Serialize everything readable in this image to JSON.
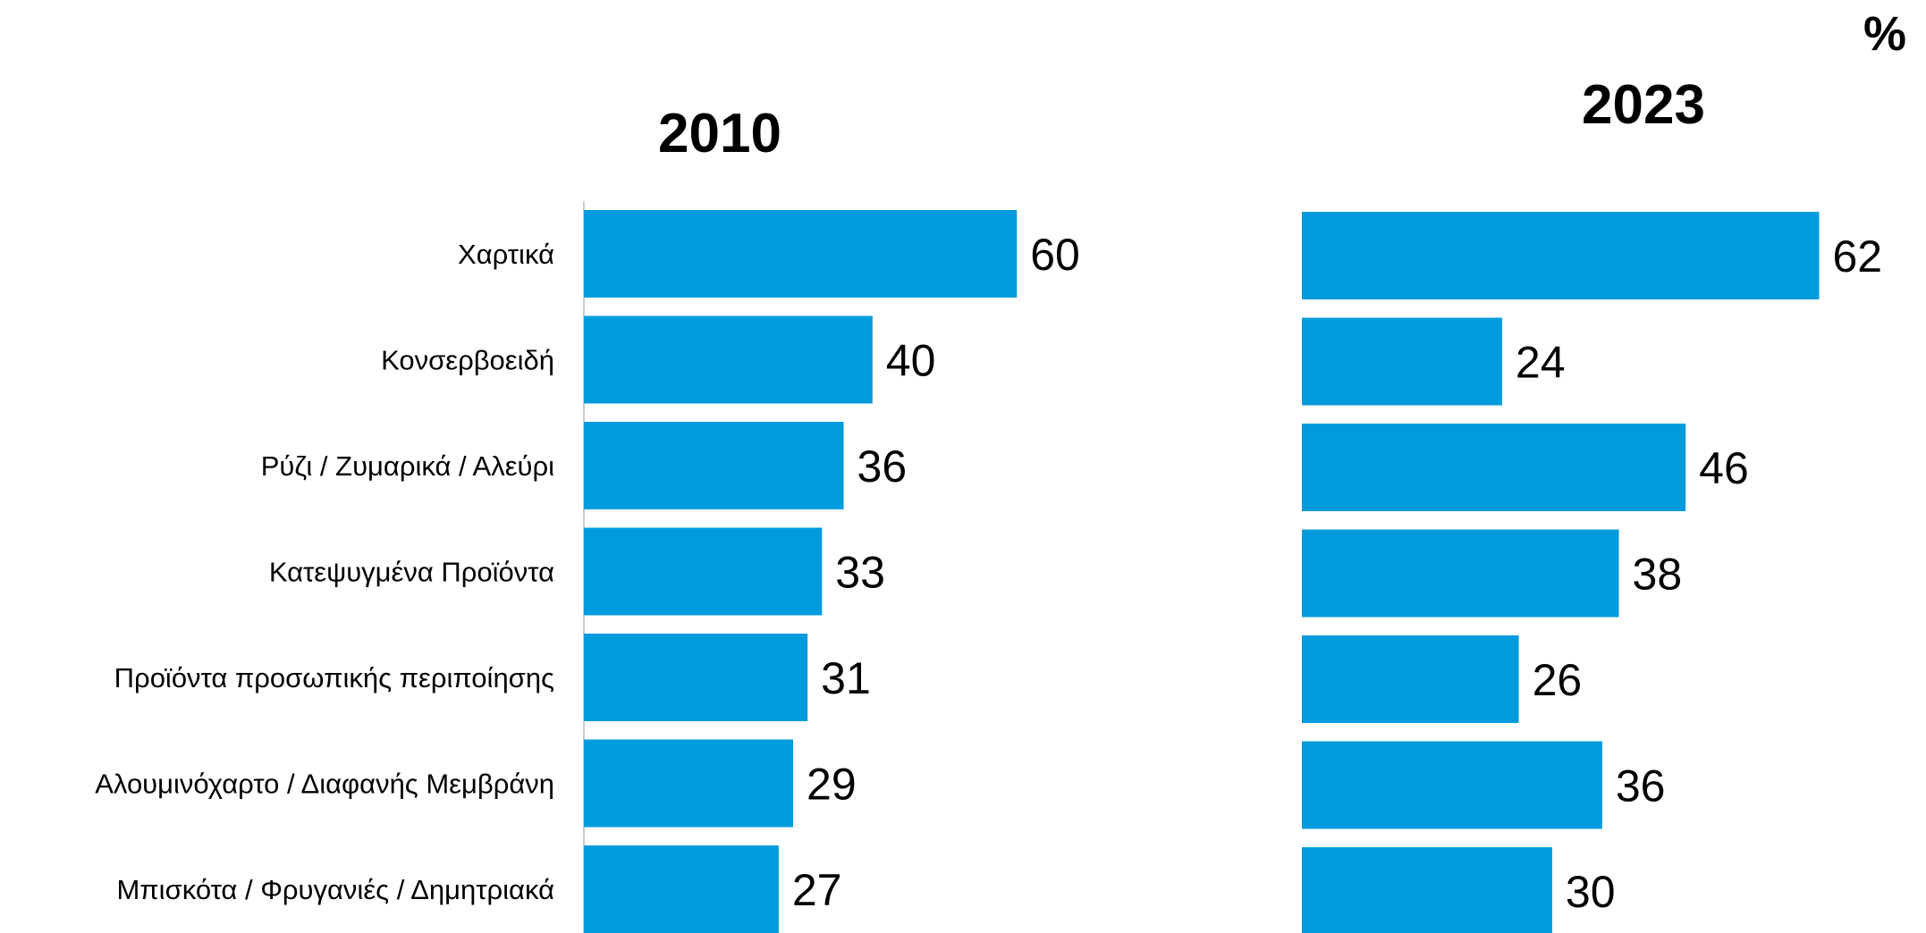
{
  "chart_data": {
    "type": "bar",
    "orientation": "horizontal",
    "unit": "%",
    "bar_color": "#009bdc",
    "axis_color": "#cccccc",
    "categories": [
      "Χαρτικά",
      "Κονσερβοειδή",
      "Ρύζι / Ζυμαρικά / Αλεύρι",
      "Κατεψυγμένα Προϊόντα",
      "Προϊόντα προσωπικής περιποίησης",
      "Αλουμινόχαρτο / Διαφανής Μεμβράνη",
      "Μπισκότα / Φρυγανιές / Δημητριακά"
    ],
    "series": [
      {
        "name": "2010",
        "values": [
          60,
          40,
          36,
          33,
          31,
          29,
          27
        ]
      },
      {
        "name": "2023",
        "values": [
          62,
          24,
          46,
          38,
          26,
          36,
          30
        ]
      }
    ]
  }
}
